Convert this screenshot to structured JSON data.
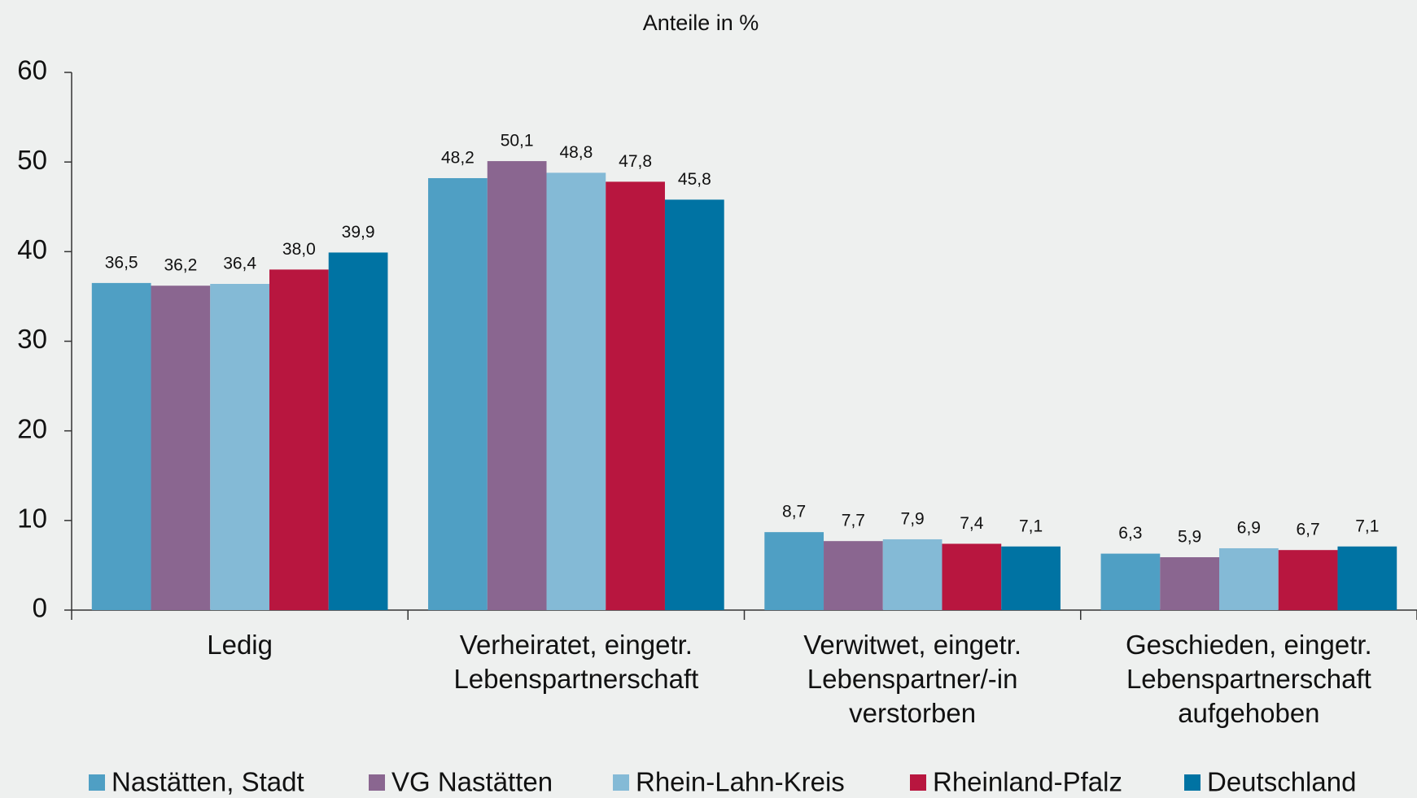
{
  "chart_data": {
    "type": "bar",
    "title": "Anteile in %",
    "categories": [
      [
        "Ledig"
      ],
      [
        "Verheiratet, eingetr.",
        "Lebenspartnerschaft"
      ],
      [
        "Verwitwet, eingetr.",
        "Lebenspartner/-in",
        "verstorben"
      ],
      [
        "Geschieden, eingetr.",
        "Lebenspartnerschaft",
        "aufgehoben"
      ]
    ],
    "series": [
      {
        "name": "Nastätten, Stadt",
        "color": "#4f9fc4",
        "values": [
          36.5,
          48.2,
          8.7,
          6.3
        ],
        "value_labels": [
          "36,5",
          "48,2",
          "8,7",
          "6,3"
        ]
      },
      {
        "name": "VG Nastätten",
        "color": "#8a6690",
        "values": [
          36.2,
          50.1,
          7.7,
          5.9
        ],
        "value_labels": [
          "36,2",
          "50,1",
          "7,7",
          "5,9"
        ]
      },
      {
        "name": "Rhein-Lahn-Kreis",
        "color": "#84bad6",
        "values": [
          36.4,
          48.8,
          7.9,
          6.9
        ],
        "value_labels": [
          "36,4",
          "48,8",
          "7,9",
          "6,9"
        ]
      },
      {
        "name": "Rheinland-Pfalz",
        "color": "#b8163f",
        "values": [
          38.0,
          47.8,
          7.4,
          6.7
        ],
        "value_labels": [
          "38,0",
          "47,8",
          "7,4",
          "6,7"
        ]
      },
      {
        "name": "Deutschland",
        "color": "#0073a3",
        "values": [
          39.9,
          45.8,
          7.1,
          7.1
        ],
        "value_labels": [
          "39,9",
          "45,8",
          "7,1",
          "7,1"
        ]
      }
    ],
    "ylim": [
      0,
      60
    ],
    "yticks": [
      0,
      10,
      20,
      30,
      40,
      50,
      60
    ],
    "grid": false,
    "legend": "bottom"
  }
}
